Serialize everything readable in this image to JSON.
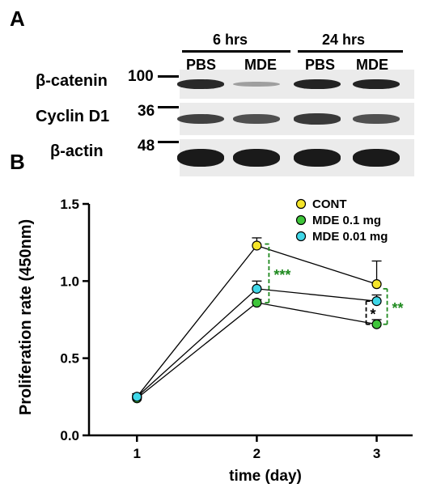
{
  "panel_a": {
    "letter": "A",
    "timepoints": [
      {
        "label": "6 hrs",
        "lanes": [
          "PBS",
          "MDE"
        ]
      },
      {
        "label": "24 hrs",
        "lanes": [
          "PBS",
          "MDE"
        ]
      }
    ],
    "rows": [
      {
        "protein": "β-catenin",
        "marker": "100",
        "band_intensity": [
          0.9,
          0.15,
          0.95,
          0.95
        ]
      },
      {
        "protein": "Cyclin D1",
        "marker": "36",
        "band_intensity": [
          0.75,
          0.65,
          0.8,
          0.65
        ]
      },
      {
        "protein": "β-actin",
        "marker": "48",
        "band_intensity": [
          1.0,
          1.0,
          1.0,
          1.0
        ]
      }
    ]
  },
  "panel_b": {
    "letter": "B",
    "chart_data": {
      "type": "line",
      "xlabel": "time (day)",
      "ylabel": "Proliferation rate (450nm)",
      "x": [
        1,
        2,
        3
      ],
      "xticks": [
        "1",
        "2",
        "3"
      ],
      "yticks": [
        "0.0",
        "0.5",
        "1.0",
        "1.5"
      ],
      "xlim": [
        0.6,
        3.3
      ],
      "ylim": [
        0,
        1.5
      ],
      "grid": false,
      "legend_position": "top-right",
      "series": [
        {
          "name": "CONT",
          "color": "#f5e52a",
          "values": [
            0.25,
            1.23,
            0.98
          ],
          "errors": [
            0.02,
            0.05,
            0.15
          ]
        },
        {
          "name": "MDE 0.1 mg",
          "color": "#3ec53a",
          "values": [
            0.24,
            0.86,
            0.72
          ],
          "errors": [
            0.01,
            0.02,
            0.03
          ]
        },
        {
          "name": "MDE 0.01 mg",
          "color": "#3fd7e8",
          "values": [
            0.25,
            0.95,
            0.87
          ],
          "errors": [
            0.01,
            0.05,
            0.04
          ]
        }
      ],
      "annotations": [
        {
          "text": "***",
          "x": 2,
          "y_from": 0.86,
          "y_to": 1.24,
          "color": "#1f8a1f"
        },
        {
          "text": "**",
          "x": 3,
          "y_from": 0.72,
          "y_to": 0.95,
          "color": "#1f8a1f"
        },
        {
          "text": "*",
          "x": 3,
          "y_from": 0.72,
          "y_to": 0.87,
          "color": "#000000"
        }
      ]
    }
  }
}
